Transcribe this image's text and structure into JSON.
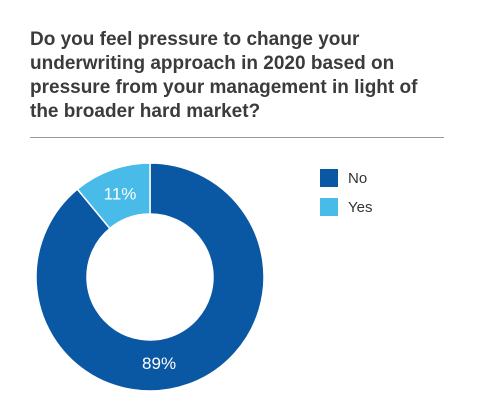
{
  "chart_data": {
    "type": "pie",
    "title": "Do you feel pressure to change your underwriting approach in 2020 based on pressure from your management in light of the broader hard market?",
    "style": "donut",
    "legend_position": "right",
    "slices": [
      {
        "label": "No",
        "value": 89,
        "display": "89%",
        "color": "#0a57a4"
      },
      {
        "label": "Yes",
        "value": 11,
        "display": "11%",
        "color": "#48bbe9"
      }
    ]
  }
}
